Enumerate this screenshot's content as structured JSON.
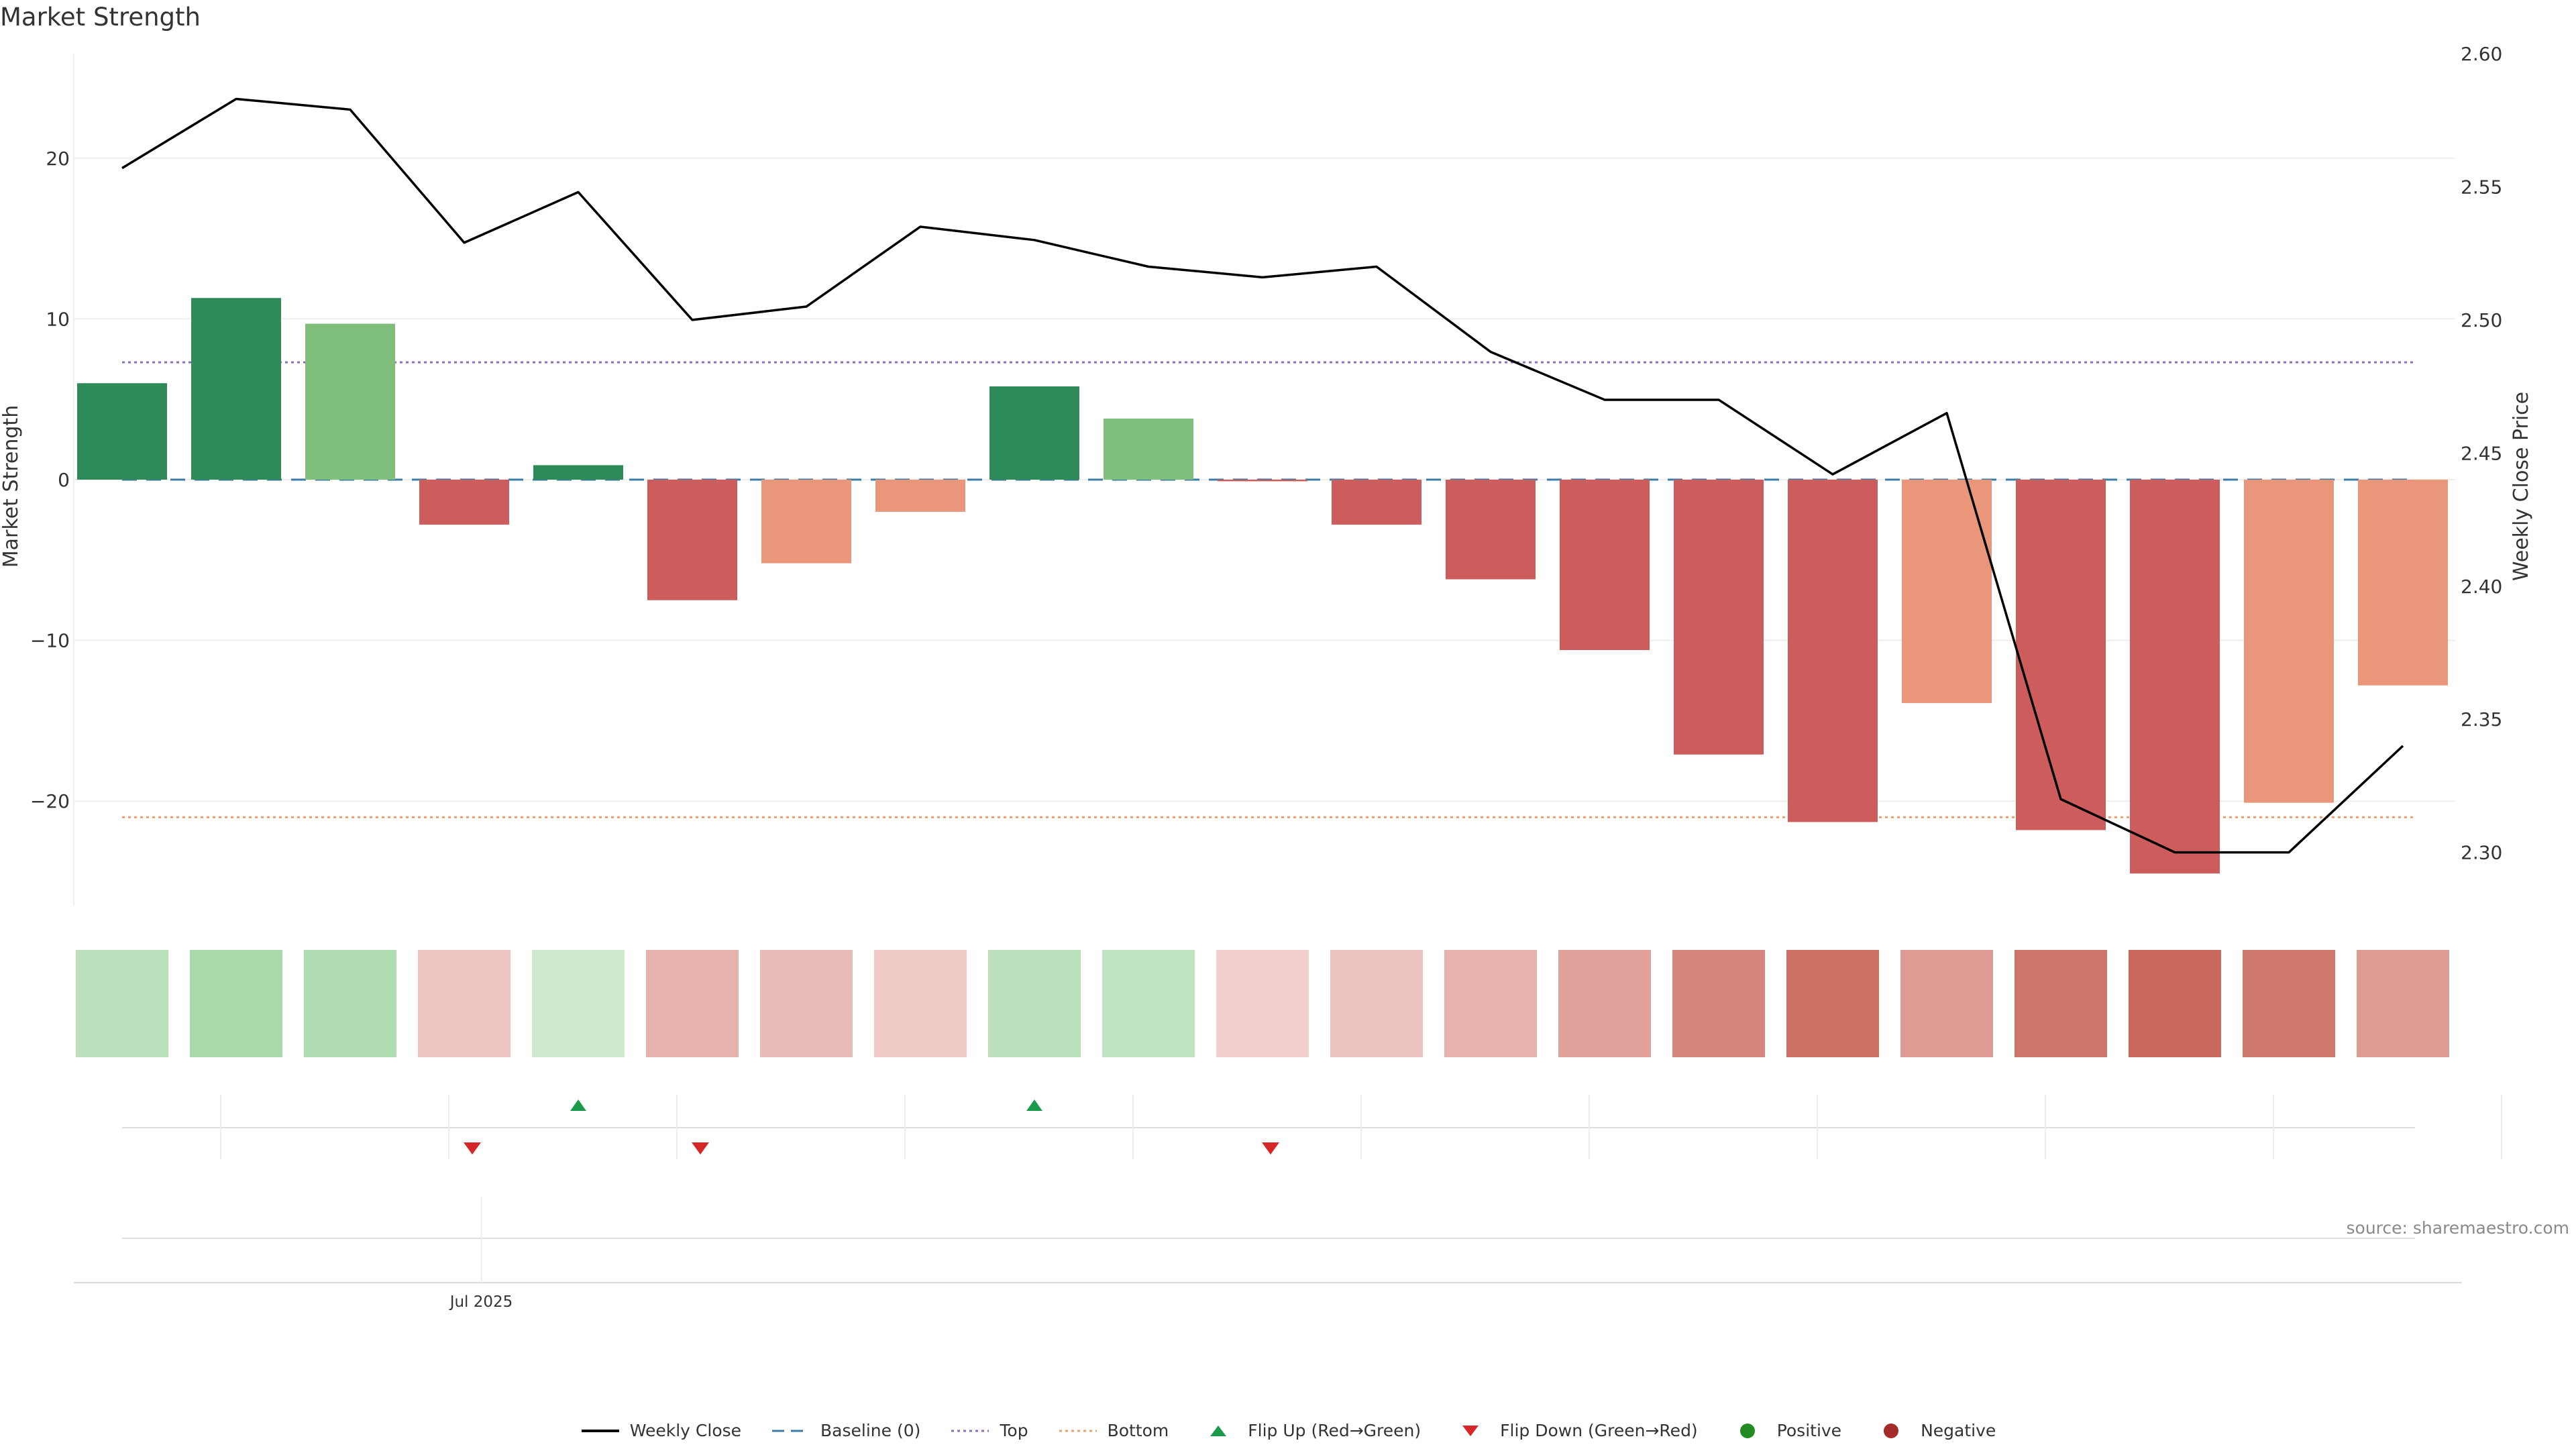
{
  "title": "Market Strength",
  "source": "source: sharemaestro.com",
  "chart_data": {
    "type": "bar",
    "bars": [
      6.0,
      11.3,
      9.7,
      -2.8,
      0.9,
      -7.5,
      -5.2,
      -2.0,
      5.8,
      3.8,
      -0.1,
      -2.8,
      -6.2,
      -10.6,
      -17.1,
      -21.3,
      -13.9,
      -21.8,
      -24.5,
      -20.1,
      -12.8
    ],
    "bar_categories": [
      "dark-green",
      "dark-green",
      "light-green",
      "red",
      "dark-green",
      "red",
      "salmon",
      "salmon",
      "dark-green",
      "light-green",
      "red",
      "red",
      "red",
      "red",
      "red",
      "red",
      "salmon",
      "red",
      "red",
      "salmon",
      "salmon"
    ],
    "weekly_close": [
      2.557,
      2.583,
      2.579,
      2.529,
      2.548,
      2.5,
      2.505,
      2.535,
      2.53,
      2.52,
      2.516,
      2.52,
      2.488,
      2.47,
      2.47,
      2.442,
      2.465,
      2.32,
      2.3,
      2.3,
      2.34
    ],
    "top": 7.3,
    "bottom": -21.0,
    "baseline": 0,
    "heat_intensity": [
      0.35,
      0.5,
      0.45,
      0.25,
      0.2,
      0.38,
      0.32,
      0.22,
      0.35,
      0.3,
      0.18,
      0.27,
      0.38,
      0.5,
      0.7,
      0.85,
      0.55,
      0.82,
      0.9,
      0.78,
      0.55
    ],
    "flips": [
      {
        "index": 3,
        "direction": "down"
      },
      {
        "index": 4,
        "direction": "up"
      },
      {
        "index": 5,
        "direction": "down"
      },
      {
        "index": 8,
        "direction": "up"
      },
      {
        "index": 10,
        "direction": "down"
      }
    ],
    "left_axis": {
      "label": "Market Strength",
      "ylim": [
        -26.5,
        26.5
      ],
      "ticks": [
        20,
        10,
        0,
        -10,
        -20
      ],
      "tick_labels": [
        "20",
        "10",
        "0",
        "−10",
        "−20"
      ]
    },
    "right_axis": {
      "label": "Weekly Close Price",
      "ylim": [
        2.28,
        2.6
      ],
      "ticks": [
        2.6,
        2.55,
        2.5,
        2.45,
        2.4,
        2.35,
        2.3
      ],
      "tick_labels": [
        "2.60",
        "2.55",
        "2.50",
        "2.45",
        "2.40",
        "2.35",
        "2.30"
      ]
    },
    "x_ticks": [
      {
        "index": 3.15,
        "label": "Jul 2025"
      }
    ],
    "legend": [
      {
        "label": "Weekly Close",
        "kind": "line",
        "color": "#000000"
      },
      {
        "label": "Baseline (0)",
        "kind": "dashed",
        "color": "#3a7ca5"
      },
      {
        "label": "Top",
        "kind": "dotted",
        "color": "#8a6fbf"
      },
      {
        "label": "Bottom",
        "kind": "dotted",
        "color": "#e8a070"
      },
      {
        "label": "Flip Up (Red→Green)",
        "kind": "triangle-up",
        "color": "#1a9a4a"
      },
      {
        "label": "Flip Down (Green→Red)",
        "kind": "triangle-down",
        "color": "#d62728"
      },
      {
        "label": "Positive",
        "kind": "circle",
        "color": "#228b22"
      },
      {
        "label": "Negative",
        "kind": "circle",
        "color": "#a52a2a"
      }
    ],
    "colors": {
      "dark-green": "#2e8b57",
      "light-green": "#7fbf7b",
      "red": "#cd5c5c",
      "salmon": "#e9967a"
    }
  }
}
